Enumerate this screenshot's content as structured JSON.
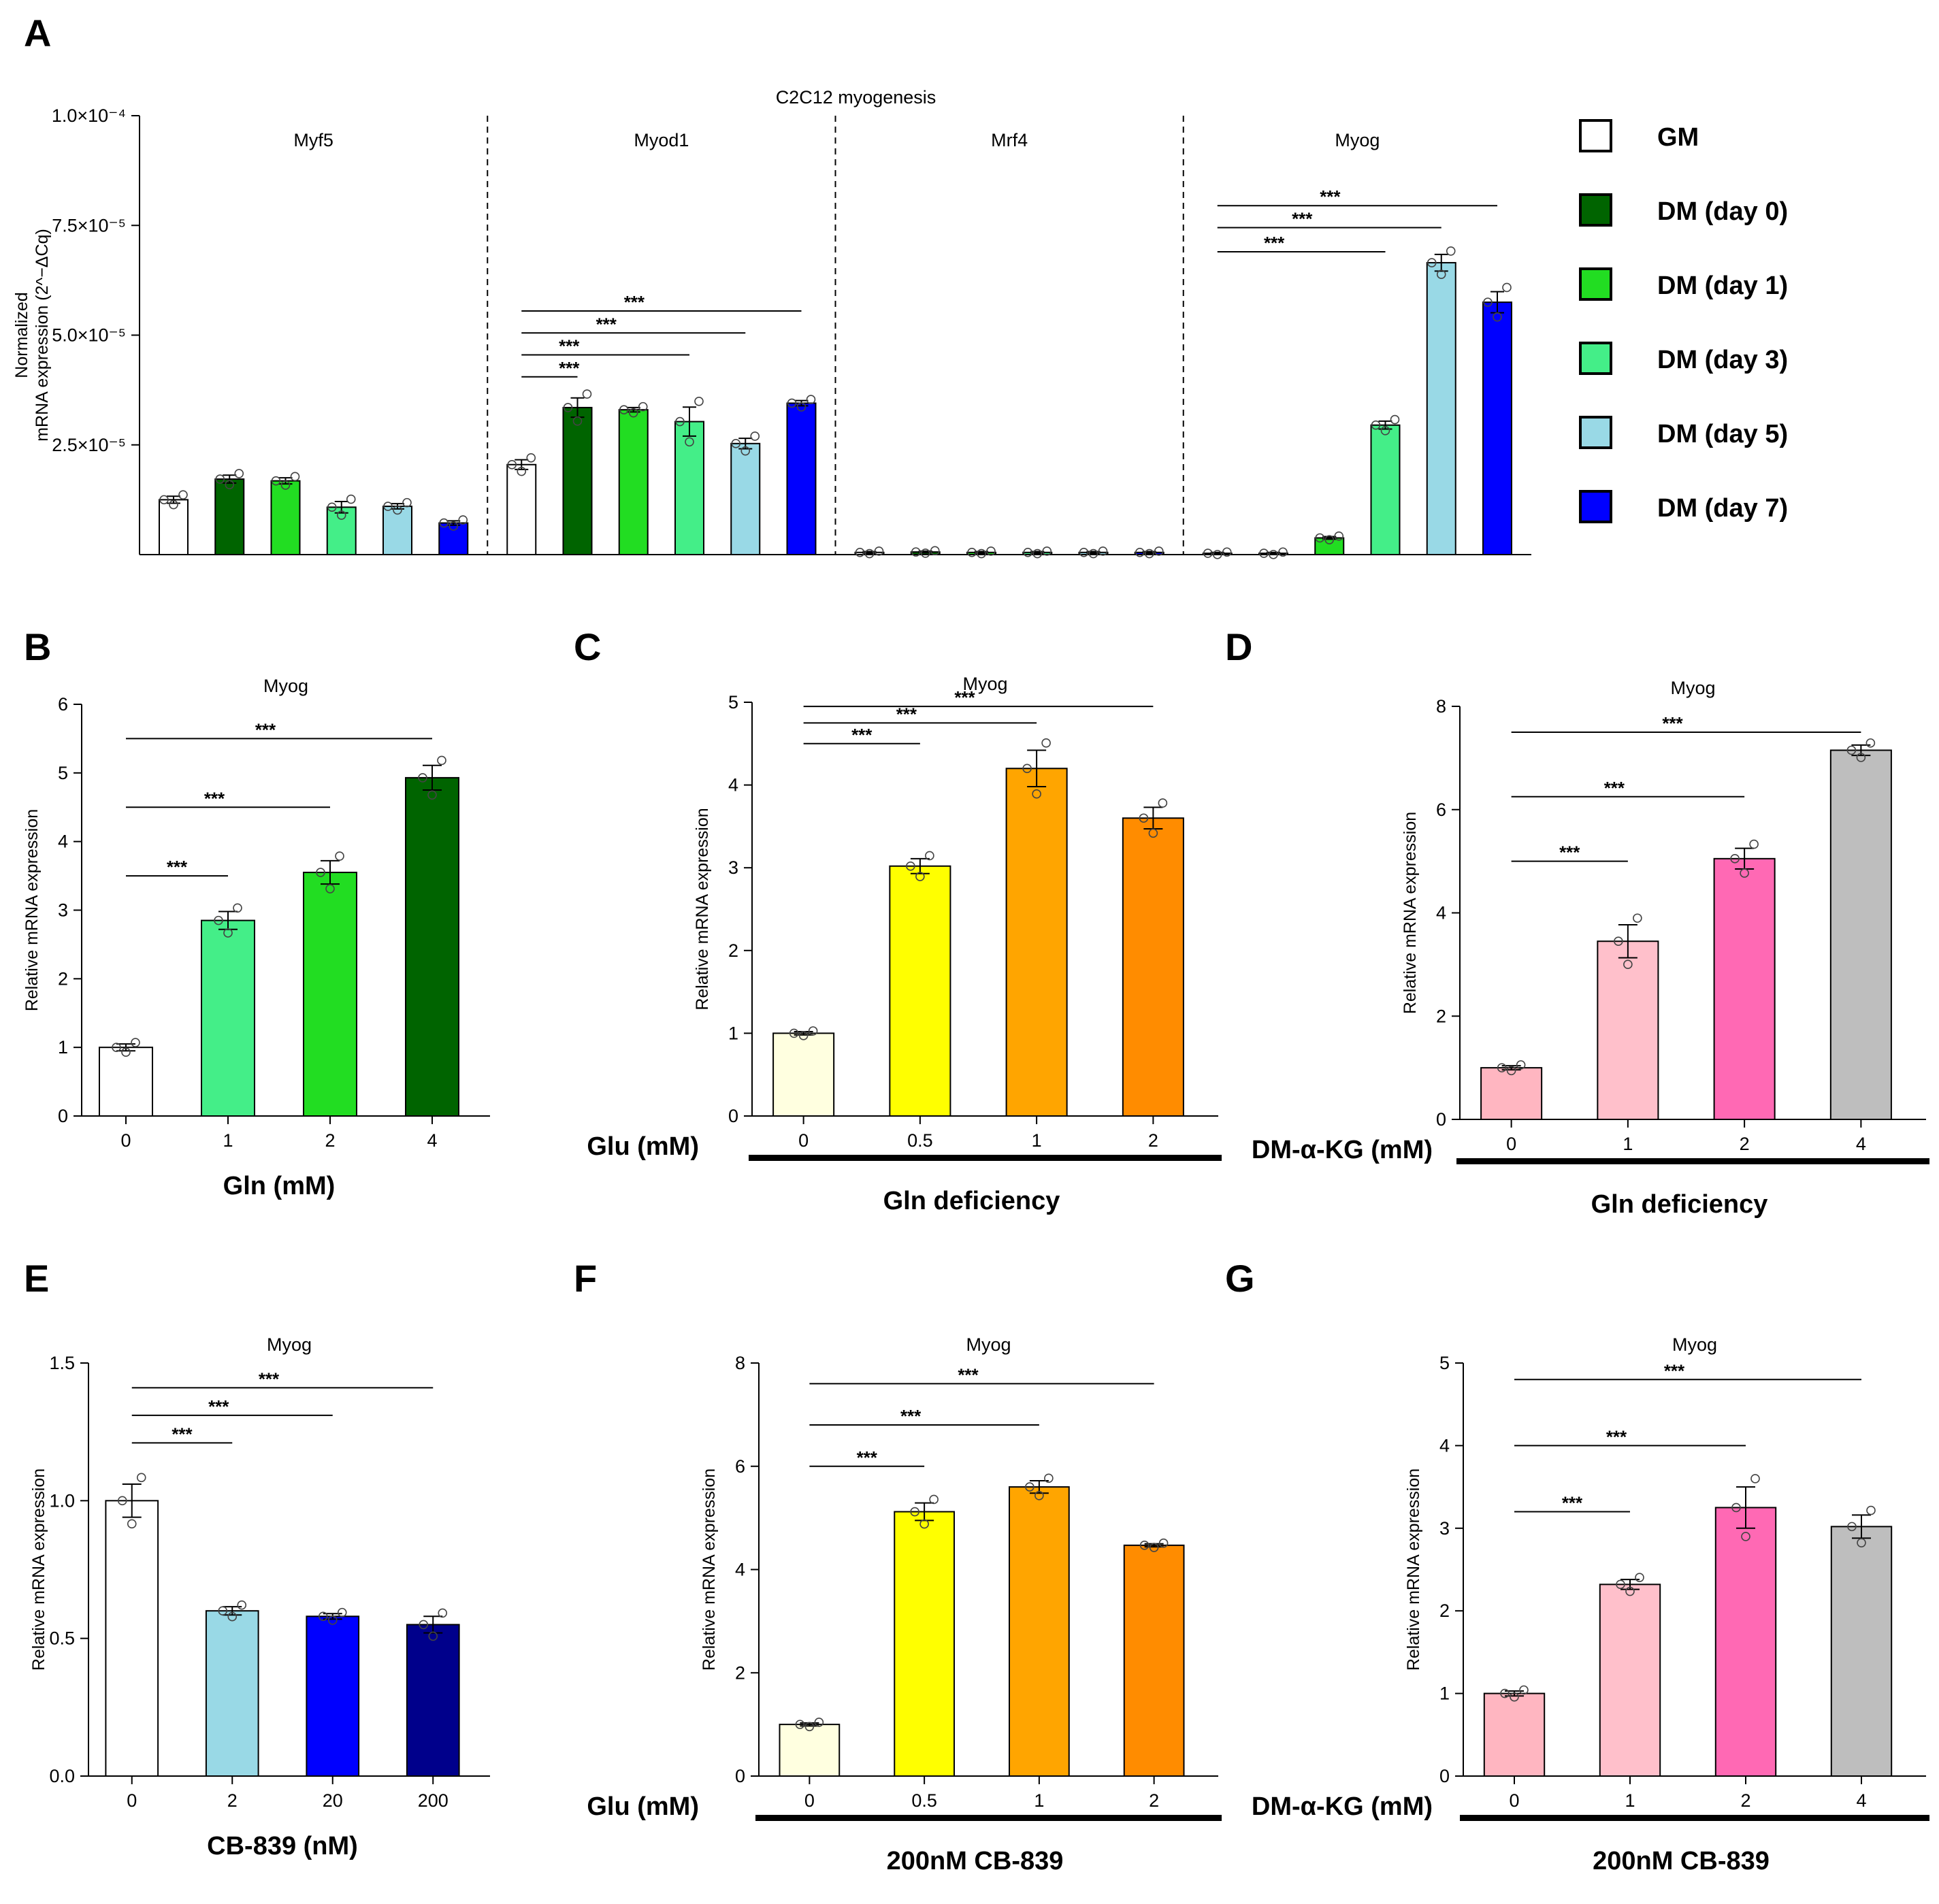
{
  "chart_data": [
    {
      "id": "A",
      "panel_label": "A",
      "type": "bar",
      "title": "C2C12 myogenesis",
      "ylabel": [
        "Normalized",
        "mRNA expression (2^−ΔCq)"
      ],
      "ylim": [
        0,
        0.0001
      ],
      "yticks": [
        {
          "value": 2.5e-05,
          "label": "2.5×10⁻⁵"
        },
        {
          "value": 5e-05,
          "label": "5.0×10⁻⁵"
        },
        {
          "value": 7.5e-05,
          "label": "7.5×10⁻⁵"
        },
        {
          "value": 0.0001,
          "label": "1.0×10⁻⁴"
        }
      ],
      "genes": [
        "Myf5",
        "Myod1",
        "Mrf4",
        "Myog"
      ],
      "series_names": [
        "GM",
        "DM (day 0)",
        "DM (day 1)",
        "DM (day 3)",
        "DM (day 5)",
        "DM (day 7)"
      ],
      "colors": [
        "#ffffff",
        "#006400",
        "#22dd22",
        "#44ee88",
        "#99d9e6",
        "#0000ff"
      ],
      "values": [
        [
          1.25e-05,
          1.72e-05,
          1.68e-05,
          1.08e-05,
          1.1e-05,
          7.2e-06
        ],
        [
          2.05e-05,
          3.35e-05,
          3.3e-05,
          3.03e-05,
          2.53e-05,
          3.45e-05
        ],
        [
          5e-07,
          6e-07,
          5e-07,
          5e-07,
          5e-07,
          5e-07
        ],
        [
          3e-07,
          3e-07,
          3.8e-06,
          2.95e-05,
          6.65e-05,
          5.75e-05
        ]
      ],
      "errors": [
        [
          8e-07,
          9e-07,
          7e-07,
          1.3e-06,
          6e-07,
          5e-07
        ],
        [
          1.1e-06,
          2.2e-06,
          5e-07,
          3.3e-06,
          1.2e-06,
          6e-07
        ],
        [
          2e-07,
          2e-07,
          2e-07,
          2e-07,
          2e-07,
          2e-07
        ],
        [
          2e-07,
          2e-07,
          3e-07,
          9e-07,
          1.9e-06,
          2.4e-06
        ]
      ],
      "significance": [
        {
          "gene": 1,
          "from": 0,
          "to": 1,
          "y": 4.05e-05,
          "label": "***"
        },
        {
          "gene": 1,
          "from": 0,
          "to": 3,
          "y": 4.55e-05,
          "label": "***"
        },
        {
          "gene": 1,
          "from": 0,
          "to": 4,
          "y": 5.05e-05,
          "label": "***"
        },
        {
          "gene": 1,
          "from": 0,
          "to": 5,
          "y": 5.55e-05,
          "label": "***"
        },
        {
          "gene": 3,
          "from": 0,
          "to": 3,
          "y": 6.9e-05,
          "label": "***"
        },
        {
          "gene": 3,
          "from": 0,
          "to": 4,
          "y": 7.45e-05,
          "label": "***"
        },
        {
          "gene": 3,
          "from": 0,
          "to": 5,
          "y": 7.95e-05,
          "label": "***"
        }
      ]
    },
    {
      "id": "B",
      "panel_label": "B",
      "type": "bar",
      "title": "Myog",
      "ylabel": "Relative mRNA expression",
      "ylim": [
        0,
        6
      ],
      "yticks": [
        0,
        1,
        2,
        3,
        4,
        5,
        6
      ],
      "categories": [
        "0",
        "1",
        "2",
        "4"
      ],
      "values": [
        1.0,
        2.85,
        3.55,
        4.93
      ],
      "errors": [
        0.05,
        0.13,
        0.17,
        0.18
      ],
      "colors": [
        "#ffffff",
        "#44ee88",
        "#22dd22",
        "#006400"
      ],
      "xlabel": "Gln (mM)",
      "xprefix": "",
      "bottom_label": "",
      "significance": [
        {
          "from": 0,
          "to": 1,
          "y": 3.5,
          "label": "***"
        },
        {
          "from": 0,
          "to": 2,
          "y": 4.5,
          "label": "***"
        },
        {
          "from": 0,
          "to": 3,
          "y": 5.5,
          "label": "***"
        }
      ]
    },
    {
      "id": "C",
      "panel_label": "C",
      "type": "bar",
      "title": "Myog",
      "ylabel": "Relative mRNA expression",
      "ylim": [
        0,
        5
      ],
      "yticks": [
        0,
        1,
        2,
        3,
        4,
        5
      ],
      "categories": [
        "0",
        "0.5",
        "1",
        "2"
      ],
      "values": [
        1.0,
        3.02,
        4.2,
        3.6
      ],
      "errors": [
        0.02,
        0.09,
        0.22,
        0.13
      ],
      "colors": [
        "#ffffe0",
        "#ffff00",
        "#ffa500",
        "#ff8c00"
      ],
      "xlabel": "",
      "xprefix": "Glu (mM)",
      "bottom_label": "Gln deficiency",
      "significance": [
        {
          "from": 0,
          "to": 1,
          "y": 4.5,
          "label": "***"
        },
        {
          "from": 0,
          "to": 2,
          "y": 4.75,
          "label": "***"
        },
        {
          "from": 0,
          "to": 3,
          "y": 4.95,
          "label": "***"
        }
      ]
    },
    {
      "id": "D",
      "panel_label": "D",
      "type": "bar",
      "title": "Myog",
      "ylabel": "Relative mRNA expression",
      "ylim": [
        0,
        8
      ],
      "yticks": [
        0,
        2,
        4,
        6,
        8
      ],
      "categories": [
        "0",
        "1",
        "2",
        "4"
      ],
      "values": [
        1.0,
        3.45,
        5.05,
        7.15
      ],
      "errors": [
        0.04,
        0.32,
        0.2,
        0.1
      ],
      "colors": [
        "#ffb6c1",
        "#ffc0cb",
        "#ff69b4",
        "#bebebe"
      ],
      "xlabel": "",
      "xprefix": "DM-α-KG (mM)",
      "bottom_label": "Gln deficiency",
      "significance": [
        {
          "from": 0,
          "to": 1,
          "y": 5.0,
          "label": "***"
        },
        {
          "from": 0,
          "to": 2,
          "y": 6.25,
          "label": "***"
        },
        {
          "from": 0,
          "to": 3,
          "y": 7.5,
          "label": "***"
        }
      ]
    },
    {
      "id": "E",
      "panel_label": "E",
      "type": "bar",
      "title": "Myog",
      "ylabel": "Relative mRNA expression",
      "ylim": [
        0,
        1.5
      ],
      "yticks": [
        {
          "value": 0,
          "label": "0.0"
        },
        {
          "value": 0.5,
          "label": "0.5"
        },
        {
          "value": 1,
          "label": "1.0"
        },
        {
          "value": 1.5,
          "label": "1.5"
        }
      ],
      "categories": [
        "0",
        "2",
        "20",
        "200"
      ],
      "values": [
        1.0,
        0.6,
        0.58,
        0.55
      ],
      "errors": [
        0.06,
        0.015,
        0.01,
        0.03
      ],
      "colors": [
        "#ffffff",
        "#99d9e6",
        "#0000ff",
        "#00008b"
      ],
      "xlabel": "CB-839 (nM)",
      "xprefix": "",
      "bottom_label": "",
      "significance": [
        {
          "from": 0,
          "to": 1,
          "y": 1.21,
          "label": "***"
        },
        {
          "from": 0,
          "to": 2,
          "y": 1.31,
          "label": "***"
        },
        {
          "from": 0,
          "to": 3,
          "y": 1.41,
          "label": "***"
        }
      ]
    },
    {
      "id": "F",
      "panel_label": "F",
      "type": "bar",
      "title": "Myog",
      "ylabel": "Relative mRNA expression",
      "ylim": [
        0,
        8
      ],
      "yticks": [
        0,
        2,
        4,
        6,
        8
      ],
      "categories": [
        "0",
        "0.5",
        "1",
        "2"
      ],
      "values": [
        1.0,
        5.12,
        5.6,
        4.47
      ],
      "errors": [
        0.03,
        0.17,
        0.12,
        0.03
      ],
      "colors": [
        "#ffffe0",
        "#ffff00",
        "#ffa500",
        "#ff8c00"
      ],
      "xlabel": "",
      "xprefix": "Glu (mM)",
      "bottom_label": "200nM CB-839",
      "significance": [
        {
          "from": 0,
          "to": 1,
          "y": 6.0,
          "label": "***"
        },
        {
          "from": 0,
          "to": 2,
          "y": 6.8,
          "label": "***"
        },
        {
          "from": 0,
          "to": 3,
          "y": 7.6,
          "label": "***"
        }
      ]
    },
    {
      "id": "G",
      "panel_label": "G",
      "type": "bar",
      "title": "Myog",
      "ylabel": "Relative mRNA expression",
      "ylim": [
        0,
        5
      ],
      "yticks": [
        0,
        1,
        2,
        3,
        4,
        5
      ],
      "categories": [
        "0",
        "1",
        "2",
        "4"
      ],
      "values": [
        1.0,
        2.32,
        3.25,
        3.02
      ],
      "errors": [
        0.03,
        0.06,
        0.25,
        0.14
      ],
      "colors": [
        "#ffb6c1",
        "#ffc0cb",
        "#ff69b4",
        "#bebebe"
      ],
      "xlabel": "",
      "xprefix": "DM-α-KG (mM)",
      "bottom_label": "200nM CB-839",
      "significance": [
        {
          "from": 0,
          "to": 1,
          "y": 3.2,
          "label": "***"
        },
        {
          "from": 0,
          "to": 2,
          "y": 4.0,
          "label": "***"
        },
        {
          "from": 0,
          "to": 3,
          "y": 4.8,
          "label": "***"
        }
      ]
    }
  ]
}
